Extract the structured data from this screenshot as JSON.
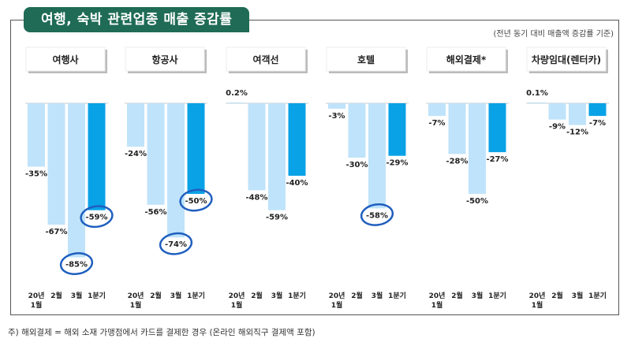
{
  "title": "여행, 숙박 관련업종 매출 증감률",
  "basis_note": "(전년 동기 대비 매출액 증감률 기준)",
  "footnote": "주) 해외결제 = 해외 소재 가맹점에서 카드를 결제한 경우 (온라인 해외직구 결제액 포함)",
  "chart_data": {
    "type": "bar",
    "unit": "%",
    "categories": [
      "20년 1월",
      "2월",
      "3월",
      "1분기"
    ],
    "tick_labels": [
      [
        "20년",
        "1월"
      ],
      [
        "2월"
      ],
      [
        "3월"
      ],
      [
        "1분기"
      ]
    ],
    "colors": {
      "monthly": "#bfe3fa",
      "quarter": "#0aa2e6",
      "highlight_circle": "#1f5fbf",
      "title_bg": "#1f6b55"
    },
    "groups": [
      {
        "name": "여행사",
        "values": [
          -35,
          -67,
          -85,
          -59
        ],
        "labels": [
          "-35%",
          "-67%",
          "-85%",
          "-59%"
        ],
        "circled": [
          false,
          false,
          true,
          true
        ]
      },
      {
        "name": "항공사",
        "values": [
          -24,
          -56,
          -74,
          -50
        ],
        "labels": [
          "-24%",
          "-56%",
          "-74%",
          "-50%"
        ],
        "circled": [
          false,
          false,
          true,
          true
        ]
      },
      {
        "name": "여객선",
        "values": [
          0.2,
          -48,
          -59,
          -40
        ],
        "labels": [
          "0.2%",
          "-48%",
          "-59%",
          "-40%"
        ],
        "circled": [
          false,
          false,
          false,
          false
        ]
      },
      {
        "name": "호텔",
        "values": [
          -3,
          -30,
          -58,
          -29
        ],
        "labels": [
          "-3%",
          "-30%",
          "-58%",
          "-29%"
        ],
        "circled": [
          false,
          false,
          true,
          false
        ]
      },
      {
        "name": "해외결제*",
        "values": [
          -7,
          -28,
          -50,
          -27
        ],
        "labels": [
          "-7%",
          "-28%",
          "-50%",
          "-27%"
        ],
        "circled": [
          false,
          false,
          false,
          false
        ]
      },
      {
        "name": "차량임대(렌터카)",
        "values": [
          0.1,
          -9,
          -12,
          -7
        ],
        "labels": [
          "0.1%",
          "-9%",
          "-12%",
          "-7%"
        ],
        "circled": [
          false,
          false,
          false,
          false
        ]
      }
    ],
    "ylim": [
      -100,
      10
    ],
    "grid": false,
    "legend": "none"
  }
}
